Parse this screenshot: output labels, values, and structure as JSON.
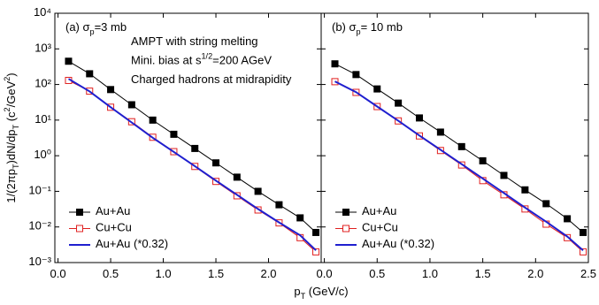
{
  "chart_data": [
    {
      "type": "line",
      "panel_label": "(a) σ_{p}=3 mb",
      "annotations": [
        "AMPT with string melting",
        "Mini. bias at s^{1/2}=200 AGeV",
        "Charged hadrons at midrapidity"
      ],
      "ylabel": "1/(2πp_{T})dN/dp_{T} (c^{2}/GeV^{2})",
      "xlabel": "p_{T} (GeV/c)",
      "x": [
        0.1,
        0.3,
        0.5,
        0.7,
        0.9,
        1.1,
        1.3,
        1.5,
        1.7,
        1.9,
        2.1,
        2.3,
        2.45
      ],
      "series": [
        {
          "name": "Au+Au",
          "color": "#000000",
          "marker": "filled-square",
          "values": [
            450,
            200,
            72,
            27,
            10,
            4,
            1.6,
            0.63,
            0.25,
            0.1,
            0.042,
            0.018,
            0.007
          ]
        },
        {
          "name": "Cu+Cu",
          "color": "#e02020",
          "marker": "open-square",
          "values": [
            130,
            65,
            23,
            9,
            3.3,
            1.3,
            0.5,
            0.19,
            0.075,
            0.03,
            0.013,
            0.005,
            0.002
          ]
        },
        {
          "name": "Au+Au (*0.32)",
          "color": "#1f1fcf",
          "marker": "none",
          "values": [
            144,
            64,
            23,
            8.6,
            3.2,
            1.28,
            0.51,
            0.2,
            0.08,
            0.032,
            0.0134,
            0.0058,
            0.0022
          ]
        }
      ],
      "log_y": true,
      "legend": "lower-left",
      "xlim": [
        -0.03,
        2.5
      ],
      "xticks": [
        {
          "value": 0,
          "label": "0.0"
        },
        0.5,
        {
          "value": 1,
          "label": "1.0"
        },
        1.5,
        {
          "value": 2,
          "label": "2.0"
        }
      ],
      "ylim": [
        0.001,
        10000
      ],
      "yticks": [
        {
          "value": 0.001,
          "label": "10⁻³"
        },
        {
          "value": 0.01,
          "label": "10⁻²"
        },
        {
          "value": 0.1,
          "label": "10⁻¹"
        },
        {
          "value": 1,
          "label": "10⁰"
        },
        {
          "value": 10,
          "label": "10¹"
        },
        {
          "value": 100,
          "label": "10²"
        },
        {
          "value": 1000,
          "label": "10³"
        },
        {
          "value": 10000,
          "label": "10⁴"
        }
      ]
    },
    {
      "type": "line",
      "panel_label": "(b) σ_{p}= 10 mb",
      "x": [
        0.1,
        0.3,
        0.5,
        0.7,
        0.9,
        1.1,
        1.3,
        1.5,
        1.7,
        1.9,
        2.1,
        2.3,
        2.45
      ],
      "series": [
        {
          "name": "Au+Au",
          "color": "#000000",
          "marker": "filled-square",
          "values": [
            380,
            190,
            75,
            30,
            11.5,
            4.6,
            1.8,
            0.72,
            0.28,
            0.11,
            0.045,
            0.017,
            0.007
          ]
        },
        {
          "name": "Cu+Cu",
          "color": "#e02020",
          "marker": "open-square",
          "values": [
            120,
            60,
            24,
            9.5,
            3.6,
            1.4,
            0.55,
            0.2,
            0.08,
            0.032,
            0.012,
            0.005,
            0.002
          ]
        },
        {
          "name": "Au+Au (*0.32)",
          "color": "#1f1fcf",
          "marker": "none",
          "values": [
            122,
            61,
            24,
            9.6,
            3.7,
            1.47,
            0.58,
            0.23,
            0.09,
            0.035,
            0.014,
            0.0054,
            0.0022
          ]
        }
      ],
      "log_y": true,
      "legend": "lower-left",
      "xlim": [
        -0.03,
        2.5
      ],
      "xticks": [
        {
          "value": 0,
          "label": "0.0"
        },
        0.5,
        {
          "value": 1,
          "label": "1.0"
        },
        1.5,
        {
          "value": 2,
          "label": "2.0"
        },
        2.5
      ],
      "ylim": [
        0.001,
        10000
      ]
    }
  ]
}
